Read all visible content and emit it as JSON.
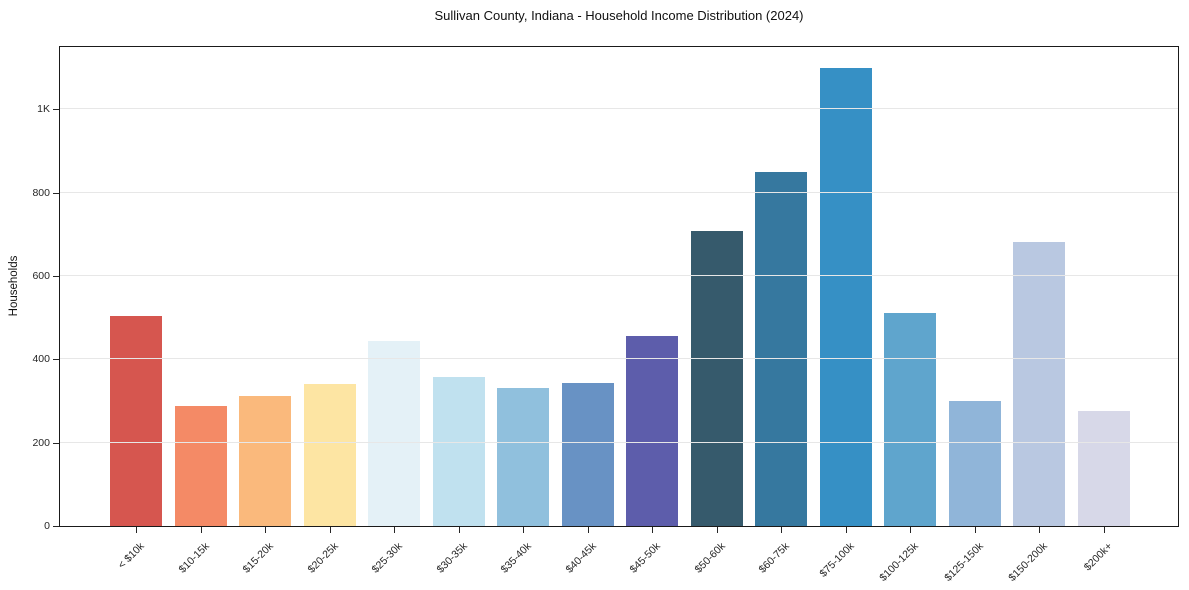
{
  "chart_data": {
    "type": "bar",
    "title": "Sullivan County, Indiana - Household Income Distribution (2024)",
    "xlabel": "",
    "ylabel": "Households",
    "categories": [
      "< $10k",
      "$10-15k",
      "$15-20k",
      "$20-25k",
      "$25-30k",
      "$30-35k",
      "$35-40k",
      "$40-45k",
      "$45-50k",
      "$50-60k",
      "$60-75k",
      "$75-100k",
      "$100-125k",
      "$125-150k",
      "$150-200k",
      "$200k+"
    ],
    "values": [
      505,
      289,
      312,
      342,
      443,
      357,
      331,
      344,
      456,
      708,
      849,
      1100,
      512,
      300,
      681,
      276
    ],
    "bar_colors": [
      "#d6564f",
      "#f48a66",
      "#fab97c",
      "#fde5a3",
      "#e4f1f7",
      "#c0e1ef",
      "#90c0dd",
      "#6892c4",
      "#5d5dab",
      "#365a6c",
      "#36789f",
      "#3690c5",
      "#5fa5cd",
      "#90b5d9",
      "#b9c8e1",
      "#d7d8e8"
    ],
    "ylim": [
      0,
      1150
    ],
    "yticks": [
      {
        "value": 0,
        "label": "0"
      },
      {
        "value": 200,
        "label": "200"
      },
      {
        "value": 400,
        "label": "400"
      },
      {
        "value": 600,
        "label": "600"
      },
      {
        "value": 800,
        "label": "800"
      },
      {
        "value": 1000,
        "label": "1K"
      }
    ],
    "grid": "horizontal",
    "grid_color": "#e7e7e7",
    "axis_color": "#1a1a1a",
    "legend": "none",
    "x_tick_rotation_deg": 45
  }
}
